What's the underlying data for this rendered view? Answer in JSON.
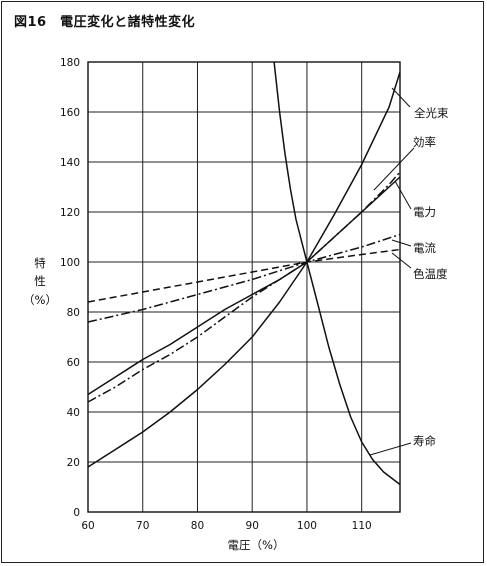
{
  "title": "図16　電圧変化と諸特性変化",
  "chart_data": {
    "type": "line",
    "xlabel": "電圧（%）",
    "ylabel": [
      "特",
      "性",
      "（%）"
    ],
    "xlim": [
      60,
      117
    ],
    "ylim": [
      0,
      180
    ],
    "xticks": [
      60,
      70,
      80,
      90,
      100,
      110
    ],
    "yticks": [
      0,
      20,
      40,
      60,
      80,
      100,
      120,
      140,
      160,
      180
    ],
    "grid": true,
    "series": [
      {
        "name": "全光束",
        "style": "solid",
        "x": [
          60,
          65,
          70,
          75,
          80,
          85,
          90,
          95,
          100,
          105,
          110,
          115,
          117
        ],
        "y": [
          18,
          25,
          32,
          40,
          49,
          59,
          70,
          84,
          100,
          119,
          139,
          162,
          176
        ]
      },
      {
        "name": "効率",
        "style": "solid",
        "x": [
          60,
          65,
          70,
          75,
          80,
          85,
          90,
          95,
          100,
          105,
          110,
          115,
          117
        ],
        "y": [
          47,
          54,
          61,
          67,
          74,
          81,
          87,
          93,
          100,
          110,
          120,
          130,
          134
        ]
      },
      {
        "name": "電力",
        "style": "dash-dot",
        "x": [
          60,
          65,
          70,
          75,
          80,
          85,
          90,
          95,
          100,
          105,
          110,
          115,
          117
        ],
        "y": [
          44,
          50,
          57,
          63,
          70,
          78,
          86,
          93,
          100,
          110,
          120,
          131,
          136
        ]
      },
      {
        "name": "電流",
        "style": "dash-dot",
        "x": [
          60,
          70,
          80,
          90,
          100,
          110,
          117
        ],
        "y": [
          76,
          81,
          87,
          93,
          100,
          106,
          111
        ]
      },
      {
        "name": "色温度",
        "style": "dashed",
        "x": [
          60,
          70,
          80,
          90,
          100,
          110,
          117
        ],
        "y": [
          84,
          88,
          92,
          96,
          100,
          103,
          105
        ]
      },
      {
        "name": "寿命",
        "style": "solid",
        "x": [
          94,
          95,
          96,
          97,
          98,
          100,
          102,
          104,
          106,
          108,
          110,
          112,
          114,
          117
        ],
        "y": [
          180,
          160,
          143,
          129,
          117,
          100,
          83,
          66,
          51,
          38,
          28,
          21,
          16,
          11
        ]
      }
    ]
  }
}
